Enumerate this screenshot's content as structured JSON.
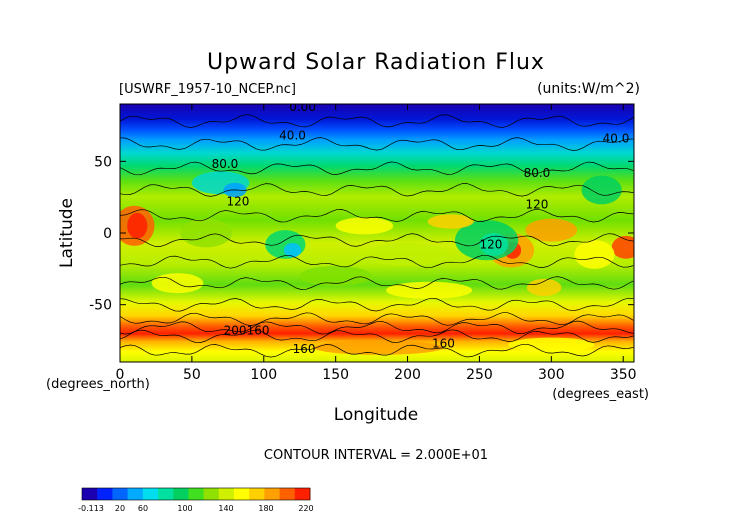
{
  "chart_data": {
    "type": "heatmap",
    "title": "Upward Solar Radiation Flux",
    "file_label": "[USWRF_1957-10_NCEP.nc]",
    "units_label": "(units:W/m^2)",
    "xlabel": "Longitude",
    "ylabel": "Latitude",
    "x_unit_label": "(degrees_east)",
    "y_unit_label": "(degrees_north)",
    "xlim": [
      0,
      357.5
    ],
    "ylim": [
      -90,
      90
    ],
    "x_ticks": [
      0,
      50,
      100,
      150,
      200,
      250,
      300,
      350
    ],
    "y_ticks": [
      50,
      0,
      -50
    ],
    "footer": "CONTOUR INTERVAL = 2.000E+01",
    "contour_interval": 20,
    "contour_labels": [
      {
        "text": "0.00",
        "lon": 127,
        "lat": 88
      },
      {
        "text": "40.0",
        "lon": 120,
        "lat": 68
      },
      {
        "text": "40.0",
        "lon": 345,
        "lat": 66
      },
      {
        "text": "80.0",
        "lon": 73,
        "lat": 48
      },
      {
        "text": "80.0",
        "lon": 290,
        "lat": 42
      },
      {
        "text": "120",
        "lon": 82,
        "lat": 22
      },
      {
        "text": "120",
        "lon": 290,
        "lat": 20
      },
      {
        "text": "120",
        "lon": 258,
        "lat": -8
      },
      {
        "text": "200",
        "lon": 80,
        "lat": -68
      },
      {
        "text": "160",
        "lon": 96,
        "lat": -68
      },
      {
        "text": "160",
        "lon": 128,
        "lat": -81
      },
      {
        "text": "160",
        "lon": 225,
        "lat": -77
      }
    ],
    "colorbar": {
      "colors": [
        "#1a00b0",
        "#0022ff",
        "#0066ff",
        "#00aaff",
        "#00ddee",
        "#00e0a0",
        "#00d060",
        "#40e020",
        "#90e000",
        "#d0f000",
        "#ffff00",
        "#ffd000",
        "#ffa000",
        "#ff6000",
        "#ff2000"
      ],
      "labels": [
        "-0.113",
        "20",
        "60",
        "100",
        "140",
        "180",
        "220"
      ]
    }
  }
}
